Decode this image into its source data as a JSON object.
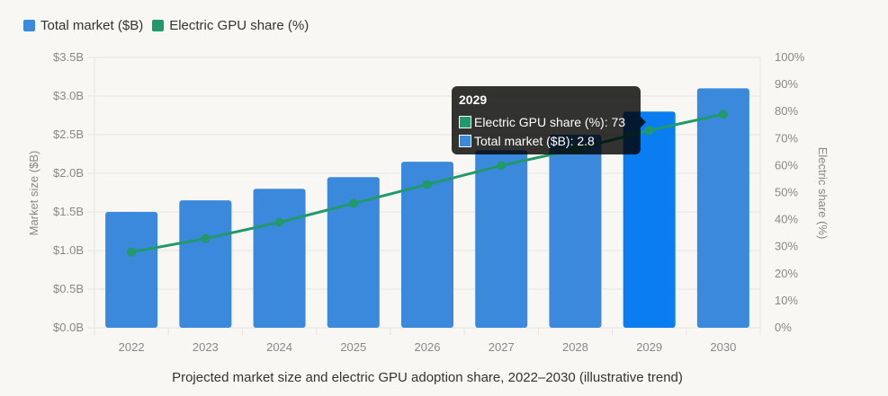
{
  "chart_data": {
    "type": "bar+line",
    "categories": [
      "2022",
      "2023",
      "2024",
      "2025",
      "2026",
      "2027",
      "2028",
      "2029",
      "2030"
    ],
    "series": [
      {
        "name": "Total market ($B)",
        "type": "bar",
        "axis": "left",
        "color": "#3a89dc",
        "values": [
          1.5,
          1.65,
          1.8,
          1.95,
          2.15,
          2.3,
          2.5,
          2.8,
          3.1
        ]
      },
      {
        "name": "Electric GPU share (%)",
        "type": "line",
        "axis": "right",
        "color": "#21996b",
        "values": [
          28,
          33,
          39,
          46,
          53,
          60,
          66,
          73,
          79
        ]
      }
    ],
    "title": "Projected market size and electric GPU adoption share, 2022–2030 (illustrative trend)",
    "ylabel": "Market size ($B)",
    "y2label": "Electric share (%)",
    "ylim": [
      0,
      3.5
    ],
    "y2lim": [
      0,
      100
    ],
    "yticks": [
      "$0.0B",
      "$0.5B",
      "$1.0B",
      "$1.5B",
      "$2.0B",
      "$2.5B",
      "$3.0B",
      "$3.5B"
    ],
    "y2ticks": [
      "0%",
      "10%",
      "20%",
      "30%",
      "40%",
      "50%",
      "60%",
      "70%",
      "80%",
      "90%",
      "100%"
    ],
    "grid": true,
    "legend": "top-left",
    "highlight_color": "#0a7ef0"
  },
  "tooltip": {
    "title": "2029",
    "line1": "Electric GPU share (%): 73",
    "line2": "Total market ($B): 2.8"
  }
}
